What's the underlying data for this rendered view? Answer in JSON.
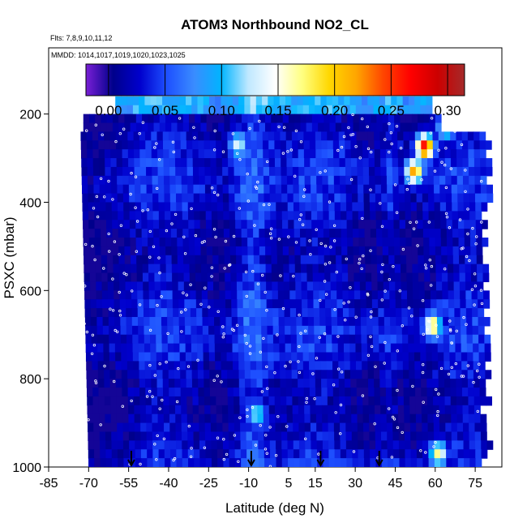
{
  "chart_data": {
    "type": "heatmap",
    "title": "ATOM3 Northbound NO2_CL",
    "flights_label": "Flts: 7,8,9,10,11,12",
    "dates_label": "MMDD: 1014,1017,1019,1020,1023,1025",
    "xlabel": "Latitude (deg N)",
    "ylabel": "PSXC (mbar)",
    "xlim": [
      -85,
      85
    ],
    "ylim": [
      1000,
      50
    ],
    "x_ticks": [
      "-85",
      "-70",
      "-55",
      "-40",
      "-25",
      "-10",
      "5",
      "15",
      "30",
      "45",
      "60",
      "75"
    ],
    "x_tick_values": [
      -85,
      -70,
      -55,
      -40,
      -25,
      -10,
      5,
      15,
      30,
      45,
      60,
      75
    ],
    "y_ticks": [
      "200",
      "400",
      "600",
      "800",
      "1000"
    ],
    "y_tick_values": [
      200,
      400,
      600,
      800,
      1000
    ],
    "colorbar": {
      "min": -0.02,
      "max": 0.315,
      "tick_labels": [
        "0.00",
        "0.05",
        "0.10",
        "0.15",
        "0.20",
        "0.25",
        "0.30"
      ],
      "tick_values": [
        0.0,
        0.05,
        0.1,
        0.15,
        0.2,
        0.25,
        0.3
      ],
      "divider_values": [
        0.0,
        0.05,
        0.1,
        0.15,
        0.2,
        0.25,
        0.3
      ],
      "colors": [
        "#7a1fd6",
        "#00008b",
        "#0000cd",
        "#1e50ff",
        "#3a8cff",
        "#00b4ff",
        "#bfe8ff",
        "#ffffff",
        "#ffff80",
        "#ffd700",
        "#ffa500",
        "#ff4500",
        "#ff0000",
        "#cc0000",
        "#a52a2a"
      ]
    },
    "profile_markers_lat": [
      -54,
      -9,
      17,
      39
    ],
    "field_extent": {
      "lat_min": -74,
      "lat_max": 78,
      "p_top": 160,
      "p_bottom": 1000
    },
    "hotspots": [
      {
        "lat": -15,
        "p": 270,
        "value": 0.14
      },
      {
        "lat": -8,
        "p": 880,
        "value": 0.13
      },
      {
        "lat": 55,
        "p": 275,
        "value": 0.27
      },
      {
        "lat": 51,
        "p": 330,
        "value": 0.22
      },
      {
        "lat": 58,
        "p": 680,
        "value": 0.19
      },
      {
        "lat": 60,
        "p": 970,
        "value": 0.17
      },
      {
        "lat": 63,
        "p": 230,
        "value": 0.15
      }
    ]
  }
}
